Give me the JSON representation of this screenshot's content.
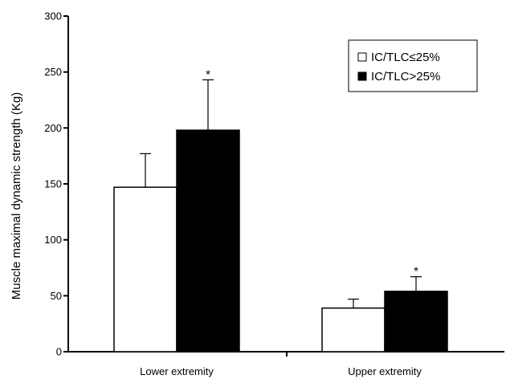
{
  "chart_data": {
    "type": "bar",
    "ylabel": "Muscle maximal dynamic strength (Kg)",
    "xlabel": "",
    "ylim": [
      0,
      300
    ],
    "yticks": [
      0,
      50,
      100,
      150,
      200,
      250,
      300
    ],
    "categories": [
      "Lower extremity",
      "Upper extremity"
    ],
    "series": [
      {
        "name": "IC/TLC≤25%",
        "fill": "#ffffff",
        "stroke": "#000000",
        "values": [
          147,
          39
        ],
        "errors": [
          30,
          8
        ],
        "significance": [
          "",
          ""
        ]
      },
      {
        "name": "IC/TLC>25%",
        "fill": "#000000",
        "stroke": "#000000",
        "values": [
          198,
          54
        ],
        "errors": [
          45,
          13
        ],
        "significance": [
          "*",
          "*"
        ]
      }
    ],
    "legend_position": "top-right",
    "grid": false
  }
}
